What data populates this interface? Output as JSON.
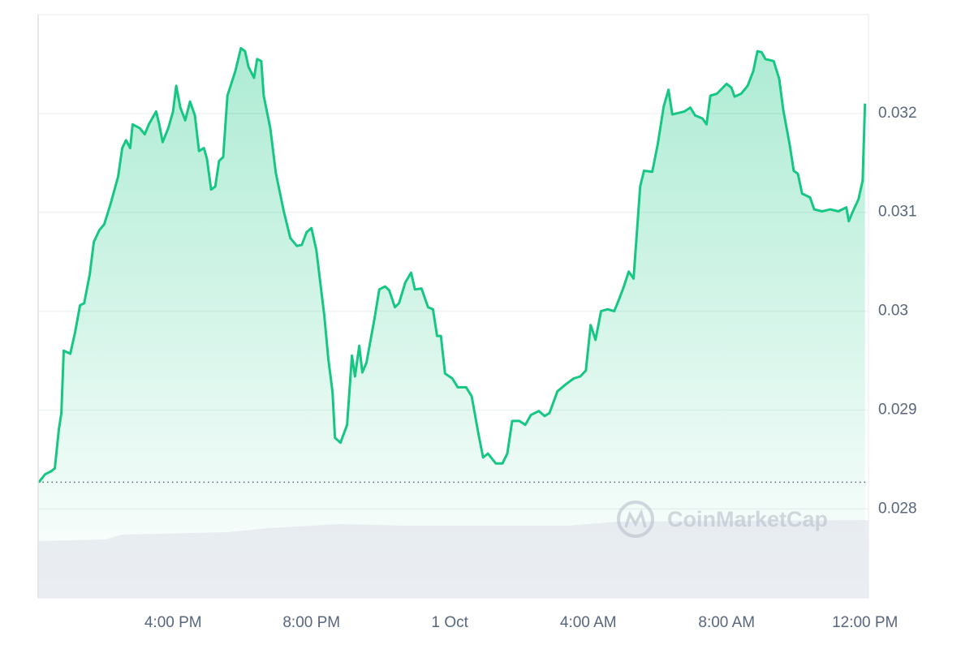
{
  "chart_data": {
    "type": "area",
    "watermark": "CoinMarketCap",
    "x": [
      12.12,
      12.3,
      12.47,
      12.58,
      12.7,
      12.77,
      12.84,
      13.03,
      13.17,
      13.31,
      13.43,
      13.59,
      13.71,
      13.87,
      14.01,
      14.18,
      14.41,
      14.53,
      14.64,
      14.76,
      14.83,
      15.04,
      15.18,
      15.3,
      15.51,
      15.6,
      15.7,
      15.86,
      16.0,
      16.09,
      16.21,
      16.35,
      16.49,
      16.63,
      16.75,
      16.89,
      16.98,
      17.1,
      17.22,
      17.33,
      17.45,
      17.57,
      17.8,
      17.96,
      18.08,
      18.18,
      18.34,
      18.43,
      18.55,
      18.62,
      18.81,
      18.97,
      19.2,
      19.39,
      19.58,
      19.72,
      19.86,
      20.0,
      20.14,
      20.37,
      20.49,
      20.61,
      20.68,
      20.84,
      21.03,
      21.17,
      21.26,
      21.38,
      21.47,
      21.59,
      21.71,
      21.82,
      21.96,
      22.13,
      22.25,
      22.41,
      22.53,
      22.71,
      22.88,
      22.99,
      23.18,
      23.37,
      23.51,
      23.63,
      23.74,
      23.86,
      24.07,
      24.23,
      24.47,
      24.63,
      24.82,
      24.96,
      25.1,
      25.33,
      25.52,
      25.66,
      25.8,
      26.01,
      26.18,
      26.34,
      26.57,
      26.74,
      26.88,
      27.11,
      27.35,
      27.58,
      27.77,
      27.93,
      28.07,
      28.21,
      28.37,
      28.56,
      28.75,
      28.89,
      29.03,
      29.17,
      29.31,
      29.5,
      29.61,
      29.85,
      30.01,
      30.18,
      30.32,
      30.43,
      30.78,
      30.95,
      31.09,
      31.3,
      31.42,
      31.53,
      31.72,
      32.0,
      32.14,
      32.23,
      32.42,
      32.61,
      32.77,
      32.89,
      33.01,
      33.12,
      33.36,
      33.52,
      33.64,
      33.82,
      33.94,
      34.06,
      34.18,
      34.41,
      34.53,
      34.76,
      34.99,
      35.23,
      35.46,
      35.53,
      35.65,
      35.81,
      35.93,
      36.0
    ],
    "series": [
      {
        "color": "#16c784",
        "values": [
          0.02827,
          0.02835,
          0.02838,
          0.02841,
          0.02881,
          0.02897,
          0.0296,
          0.02957,
          0.02979,
          0.03006,
          0.03008,
          0.03037,
          0.0307,
          0.03082,
          0.03088,
          0.03107,
          0.03136,
          0.03165,
          0.03173,
          0.03165,
          0.03189,
          0.03185,
          0.03179,
          0.03189,
          0.03202,
          0.03189,
          0.03171,
          0.03185,
          0.03202,
          0.03228,
          0.03206,
          0.03193,
          0.03212,
          0.03198,
          0.03162,
          0.03165,
          0.03154,
          0.03123,
          0.03126,
          0.03152,
          0.03156,
          0.03218,
          0.03243,
          0.03266,
          0.03263,
          0.03247,
          0.03236,
          0.03255,
          0.03253,
          0.03218,
          0.03185,
          0.0314,
          0.03101,
          0.03074,
          0.03066,
          0.03067,
          0.0308,
          0.03084,
          0.03062,
          0.02996,
          0.02951,
          0.02918,
          0.02872,
          0.02867,
          0.02885,
          0.02955,
          0.02934,
          0.02965,
          0.02938,
          0.02948,
          0.02971,
          0.02992,
          0.03022,
          0.03025,
          0.03021,
          0.03004,
          0.03008,
          0.03029,
          0.03039,
          0.03022,
          0.03023,
          0.03004,
          0.03002,
          0.02975,
          0.02975,
          0.02937,
          0.02932,
          0.02923,
          0.02923,
          0.02914,
          0.02877,
          0.02852,
          0.02856,
          0.02846,
          0.02846,
          0.02856,
          0.02889,
          0.02889,
          0.02885,
          0.02895,
          0.02899,
          0.02894,
          0.02897,
          0.02919,
          0.02926,
          0.02932,
          0.02934,
          0.0294,
          0.02986,
          0.02971,
          0.03,
          0.03002,
          0.03,
          0.03012,
          0.03025,
          0.0304,
          0.03033,
          0.03126,
          0.03142,
          0.03141,
          0.03169,
          0.03207,
          0.03224,
          0.03199,
          0.03202,
          0.03206,
          0.03198,
          0.03195,
          0.03189,
          0.03218,
          0.0322,
          0.0323,
          0.03226,
          0.03217,
          0.0322,
          0.03228,
          0.03243,
          0.03263,
          0.03262,
          0.03255,
          0.03253,
          0.03235,
          0.03203,
          0.03169,
          0.03142,
          0.03139,
          0.03119,
          0.03115,
          0.03103,
          0.03101,
          0.03103,
          0.03101,
          0.03105,
          0.03091,
          0.03101,
          0.03113,
          0.03132,
          0.0321
        ]
      }
    ],
    "baseline": 0.02827,
    "xlim": [
      12.1,
      36.1
    ],
    "xticks": [
      {
        "value": 16,
        "label": "4:00 PM"
      },
      {
        "value": 20,
        "label": "8:00 PM"
      },
      {
        "value": 24,
        "label": "1 Oct"
      },
      {
        "value": 28,
        "label": "4:00 AM"
      },
      {
        "value": 32,
        "label": "8:00 AM"
      },
      {
        "value": 36,
        "label": "12:00 PM"
      }
    ],
    "ylim": [
      0.0271,
      0.033
    ],
    "yticks": [
      0.028,
      0.029,
      0.03,
      0.031,
      0.032
    ],
    "grid": true
  }
}
